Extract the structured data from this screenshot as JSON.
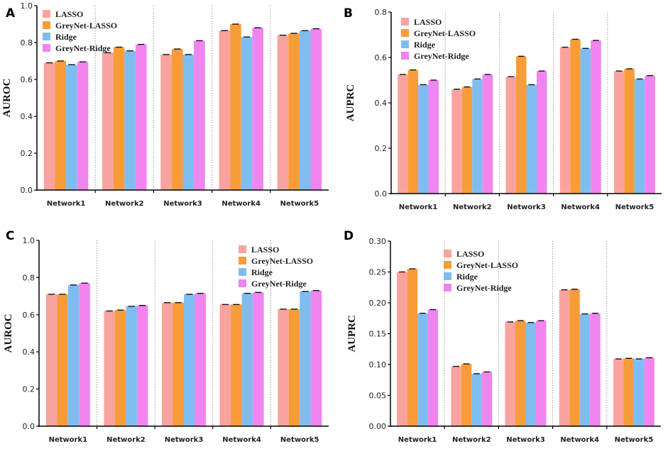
{
  "colors": {
    "LASSO": "#f9a39f",
    "GreyNet-LASSO": "#f89c3a",
    "Ridge": "#7fbdf0",
    "GreyNet-Ridge": "#f184ef"
  },
  "chart_data": [
    {
      "panel": "A",
      "type": "bar",
      "ylabel": "AUROC",
      "ylim": [
        0,
        1.0
      ],
      "yticks": [
        "0.0",
        "0.2",
        "0.4",
        "0.6",
        "0.8",
        "1.0"
      ],
      "categories": [
        "Network1",
        "Network2",
        "Network3",
        "Network4",
        "Network5"
      ],
      "legend_position": "top-left",
      "series": [
        {
          "name": "LASSO",
          "values": [
            0.69,
            0.745,
            0.735,
            0.865,
            0.84
          ]
        },
        {
          "name": "GreyNet-LASSO",
          "values": [
            0.7,
            0.775,
            0.765,
            0.9,
            0.85
          ]
        },
        {
          "name": "Ridge",
          "values": [
            0.68,
            0.755,
            0.735,
            0.83,
            0.865
          ]
        },
        {
          "name": "GreyNet-Ridge",
          "values": [
            0.695,
            0.79,
            0.81,
            0.88,
            0.875
          ]
        }
      ]
    },
    {
      "panel": "B",
      "type": "bar",
      "ylabel": "AUPRC",
      "ylim": [
        0,
        0.8
      ],
      "yticks": [
        "0.0",
        "0.2",
        "0.4",
        "0.6",
        "0.8"
      ],
      "categories": [
        "Network1",
        "Network2",
        "Network3",
        "Network4",
        "Network5"
      ],
      "legend_position": "top-left",
      "series": [
        {
          "name": "LASSO",
          "values": [
            0.525,
            0.46,
            0.515,
            0.645,
            0.54
          ]
        },
        {
          "name": "GreyNet-LASSO",
          "values": [
            0.545,
            0.47,
            0.605,
            0.68,
            0.55
          ]
        },
        {
          "name": "Ridge",
          "values": [
            0.48,
            0.505,
            0.48,
            0.64,
            0.505
          ]
        },
        {
          "name": "GreyNet-Ridge",
          "values": [
            0.5,
            0.525,
            0.54,
            0.675,
            0.52
          ]
        }
      ]
    },
    {
      "panel": "C",
      "type": "bar",
      "ylabel": "AUROC",
      "ylim": [
        0,
        1.0
      ],
      "yticks": [
        "0.0",
        "0.2",
        "0.4",
        "0.6",
        "0.8",
        "1.0"
      ],
      "categories": [
        "Network1",
        "Network2",
        "Network3",
        "Network4",
        "Network5"
      ],
      "legend_position": "top-right",
      "series": [
        {
          "name": "LASSO",
          "values": [
            0.71,
            0.62,
            0.665,
            0.655,
            0.63
          ]
        },
        {
          "name": "GreyNet-LASSO",
          "values": [
            0.71,
            0.625,
            0.665,
            0.655,
            0.63
          ]
        },
        {
          "name": "Ridge",
          "values": [
            0.76,
            0.645,
            0.71,
            0.715,
            0.725
          ]
        },
        {
          "name": "GreyNet-Ridge",
          "values": [
            0.77,
            0.65,
            0.715,
            0.72,
            0.73
          ]
        }
      ]
    },
    {
      "panel": "D",
      "type": "bar",
      "ylabel": "AUPRC",
      "ylim": [
        0,
        0.3
      ],
      "yticks": [
        "0.00",
        "0.05",
        "0.10",
        "0.15",
        "0.20",
        "0.25",
        "0.30"
      ],
      "categories": [
        "Network1",
        "Network2",
        "Network3",
        "Network4",
        "Network5"
      ],
      "legend_position": "top-right",
      "series": [
        {
          "name": "LASSO",
          "values": [
            0.25,
            0.097,
            0.169,
            0.221,
            0.109
          ]
        },
        {
          "name": "GreyNet-LASSO",
          "values": [
            0.255,
            0.101,
            0.171,
            0.222,
            0.11
          ]
        },
        {
          "name": "Ridge",
          "values": [
            0.183,
            0.085,
            0.168,
            0.182,
            0.109
          ]
        },
        {
          "name": "GreyNet-Ridge",
          "values": [
            0.189,
            0.088,
            0.171,
            0.183,
            0.111
          ]
        }
      ]
    }
  ]
}
